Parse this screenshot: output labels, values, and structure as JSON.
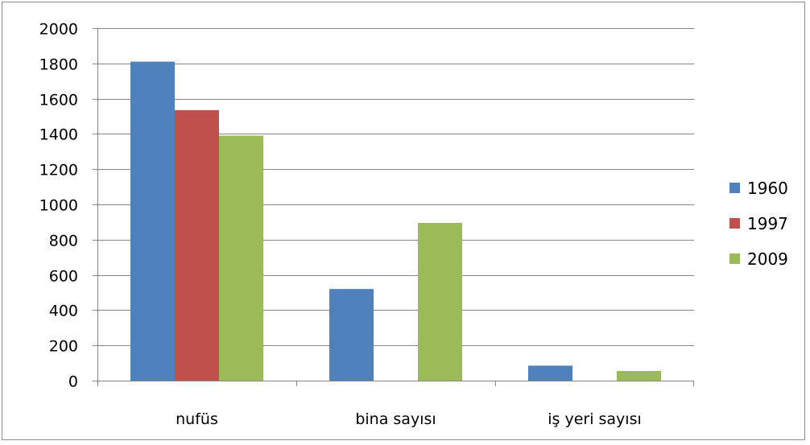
{
  "chart_data": {
    "type": "bar",
    "categories": [
      "nufüs",
      "bina sayısı",
      "iş yeri sayısı"
    ],
    "series": [
      {
        "name": "1960",
        "color": "#4f81bd",
        "values": [
          1810,
          520,
          85
        ]
      },
      {
        "name": "1997",
        "color": "#c0504d",
        "values": [
          1535,
          0,
          0
        ]
      },
      {
        "name": "2009",
        "color": "#9bbb59",
        "values": [
          1390,
          895,
          55
        ]
      }
    ],
    "yticks": [
      "0",
      "200",
      "400",
      "600",
      "800",
      "1000",
      "1200",
      "1400",
      "1600",
      "1800",
      "2000"
    ],
    "ylim": [
      0,
      2000
    ],
    "grid": true,
    "legend_position": "right"
  }
}
